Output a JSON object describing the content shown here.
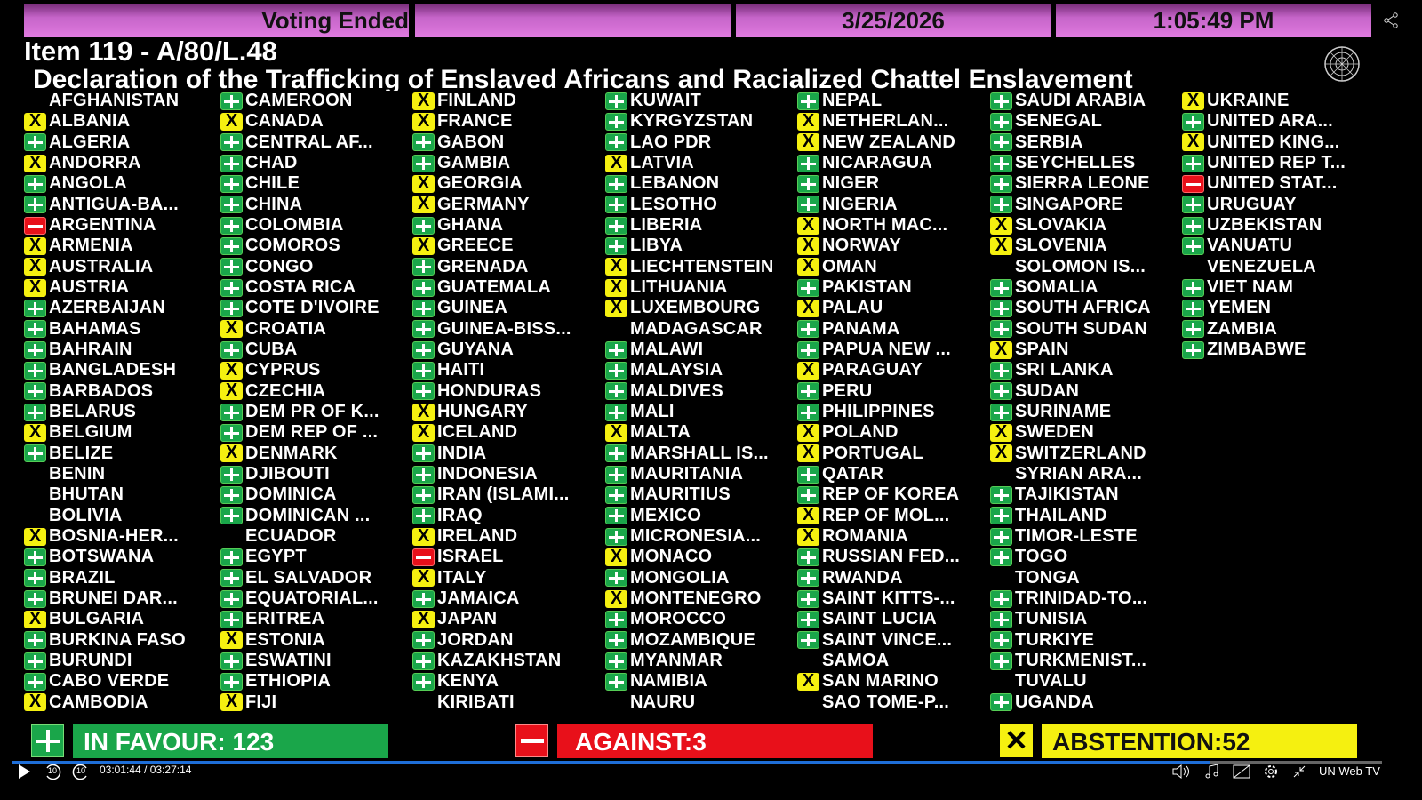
{
  "header": {
    "status": "Voting Ended",
    "blank": "",
    "date": "3/25/2026",
    "time": "1:05:49 PM"
  },
  "item_title": "Item 119 - A/80/L.48",
  "resolution_title": "Declaration of the Trafficking of Enslaved Africans and Racialized Chattel Enslavement",
  "vote_colors": {
    "yes": "#1aa64a",
    "no": "#e8101a",
    "abstain": "#f5f010"
  },
  "columns": [
    [
      {
        "v": "none",
        "n": "AFGHANISTAN"
      },
      {
        "v": "abstain",
        "n": "ALBANIA"
      },
      {
        "v": "yes",
        "n": "ALGERIA"
      },
      {
        "v": "abstain",
        "n": "ANDORRA"
      },
      {
        "v": "yes",
        "n": "ANGOLA"
      },
      {
        "v": "yes",
        "n": "ANTIGUA-BA..."
      },
      {
        "v": "no",
        "n": "ARGENTINA"
      },
      {
        "v": "abstain",
        "n": "ARMENIA"
      },
      {
        "v": "abstain",
        "n": "AUSTRALIA"
      },
      {
        "v": "abstain",
        "n": "AUSTRIA"
      },
      {
        "v": "yes",
        "n": "AZERBAIJAN"
      },
      {
        "v": "yes",
        "n": "BAHAMAS"
      },
      {
        "v": "yes",
        "n": "BAHRAIN"
      },
      {
        "v": "yes",
        "n": "BANGLADESH"
      },
      {
        "v": "yes",
        "n": "BARBADOS"
      },
      {
        "v": "yes",
        "n": "BELARUS"
      },
      {
        "v": "abstain",
        "n": "BELGIUM"
      },
      {
        "v": "yes",
        "n": "BELIZE"
      },
      {
        "v": "none",
        "n": "BENIN"
      },
      {
        "v": "none",
        "n": "BHUTAN"
      },
      {
        "v": "none",
        "n": "BOLIVIA"
      },
      {
        "v": "abstain",
        "n": "BOSNIA-HER..."
      },
      {
        "v": "yes",
        "n": "BOTSWANA"
      },
      {
        "v": "yes",
        "n": "BRAZIL"
      },
      {
        "v": "yes",
        "n": "BRUNEI DAR..."
      },
      {
        "v": "abstain",
        "n": "BULGARIA"
      },
      {
        "v": "yes",
        "n": "BURKINA FASO"
      },
      {
        "v": "yes",
        "n": "BURUNDI"
      },
      {
        "v": "yes",
        "n": "CABO VERDE"
      },
      {
        "v": "abstain",
        "n": "CAMBODIA"
      }
    ],
    [
      {
        "v": "yes",
        "n": "CAMEROON"
      },
      {
        "v": "abstain",
        "n": "CANADA"
      },
      {
        "v": "yes",
        "n": "CENTRAL AF..."
      },
      {
        "v": "yes",
        "n": "CHAD"
      },
      {
        "v": "yes",
        "n": "CHILE"
      },
      {
        "v": "yes",
        "n": "CHINA"
      },
      {
        "v": "yes",
        "n": "COLOMBIA"
      },
      {
        "v": "yes",
        "n": "COMOROS"
      },
      {
        "v": "yes",
        "n": "CONGO"
      },
      {
        "v": "yes",
        "n": "COSTA RICA"
      },
      {
        "v": "yes",
        "n": "COTE D'IVOIRE"
      },
      {
        "v": "abstain",
        "n": "CROATIA"
      },
      {
        "v": "yes",
        "n": "CUBA"
      },
      {
        "v": "abstain",
        "n": "CYPRUS"
      },
      {
        "v": "abstain",
        "n": "CZECHIA"
      },
      {
        "v": "yes",
        "n": "DEM PR OF K..."
      },
      {
        "v": "yes",
        "n": "DEM REP OF ..."
      },
      {
        "v": "abstain",
        "n": "DENMARK"
      },
      {
        "v": "yes",
        "n": "DJIBOUTI"
      },
      {
        "v": "yes",
        "n": "DOMINICA"
      },
      {
        "v": "yes",
        "n": "DOMINICAN ..."
      },
      {
        "v": "none",
        "n": "ECUADOR"
      },
      {
        "v": "yes",
        "n": "EGYPT"
      },
      {
        "v": "yes",
        "n": "EL SALVADOR"
      },
      {
        "v": "yes",
        "n": "EQUATORIAL..."
      },
      {
        "v": "yes",
        "n": "ERITREA"
      },
      {
        "v": "abstain",
        "n": "ESTONIA"
      },
      {
        "v": "yes",
        "n": "ESWATINI"
      },
      {
        "v": "yes",
        "n": "ETHIOPIA"
      },
      {
        "v": "abstain",
        "n": "FIJI"
      }
    ],
    [
      {
        "v": "abstain",
        "n": "FINLAND"
      },
      {
        "v": "abstain",
        "n": "FRANCE"
      },
      {
        "v": "yes",
        "n": "GABON"
      },
      {
        "v": "yes",
        "n": "GAMBIA"
      },
      {
        "v": "abstain",
        "n": "GEORGIA"
      },
      {
        "v": "abstain",
        "n": "GERMANY"
      },
      {
        "v": "yes",
        "n": "GHANA"
      },
      {
        "v": "abstain",
        "n": "GREECE"
      },
      {
        "v": "yes",
        "n": "GRENADA"
      },
      {
        "v": "yes",
        "n": "GUATEMALA"
      },
      {
        "v": "yes",
        "n": "GUINEA"
      },
      {
        "v": "yes",
        "n": "GUINEA-BISS..."
      },
      {
        "v": "yes",
        "n": "GUYANA"
      },
      {
        "v": "yes",
        "n": "HAITI"
      },
      {
        "v": "yes",
        "n": "HONDURAS"
      },
      {
        "v": "abstain",
        "n": "HUNGARY"
      },
      {
        "v": "abstain",
        "n": "ICELAND"
      },
      {
        "v": "yes",
        "n": "INDIA"
      },
      {
        "v": "yes",
        "n": "INDONESIA"
      },
      {
        "v": "yes",
        "n": "IRAN (ISLAMI..."
      },
      {
        "v": "yes",
        "n": "IRAQ"
      },
      {
        "v": "abstain",
        "n": "IRELAND"
      },
      {
        "v": "no",
        "n": "ISRAEL"
      },
      {
        "v": "abstain",
        "n": "ITALY"
      },
      {
        "v": "yes",
        "n": "JAMAICA"
      },
      {
        "v": "abstain",
        "n": "JAPAN"
      },
      {
        "v": "yes",
        "n": "JORDAN"
      },
      {
        "v": "yes",
        "n": "KAZAKHSTAN"
      },
      {
        "v": "yes",
        "n": "KENYA"
      },
      {
        "v": "none",
        "n": "KIRIBATI"
      }
    ],
    [
      {
        "v": "yes",
        "n": "KUWAIT"
      },
      {
        "v": "yes",
        "n": "KYRGYZSTAN"
      },
      {
        "v": "yes",
        "n": "LAO PDR"
      },
      {
        "v": "abstain",
        "n": "LATVIA"
      },
      {
        "v": "yes",
        "n": "LEBANON"
      },
      {
        "v": "yes",
        "n": "LESOTHO"
      },
      {
        "v": "yes",
        "n": "LIBERIA"
      },
      {
        "v": "yes",
        "n": "LIBYA"
      },
      {
        "v": "abstain",
        "n": "LIECHTENSTEIN"
      },
      {
        "v": "abstain",
        "n": "LITHUANIA"
      },
      {
        "v": "abstain",
        "n": "LUXEMBOURG"
      },
      {
        "v": "none",
        "n": "MADAGASCAR"
      },
      {
        "v": "yes",
        "n": "MALAWI"
      },
      {
        "v": "yes",
        "n": "MALAYSIA"
      },
      {
        "v": "yes",
        "n": "MALDIVES"
      },
      {
        "v": "yes",
        "n": "MALI"
      },
      {
        "v": "abstain",
        "n": "MALTA"
      },
      {
        "v": "yes",
        "n": "MARSHALL IS..."
      },
      {
        "v": "yes",
        "n": "MAURITANIA"
      },
      {
        "v": "yes",
        "n": "MAURITIUS"
      },
      {
        "v": "yes",
        "n": "MEXICO"
      },
      {
        "v": "yes",
        "n": "MICRONESIA..."
      },
      {
        "v": "abstain",
        "n": "MONACO"
      },
      {
        "v": "yes",
        "n": "MONGOLIA"
      },
      {
        "v": "abstain",
        "n": "MONTENEGRO"
      },
      {
        "v": "yes",
        "n": "MOROCCO"
      },
      {
        "v": "yes",
        "n": "MOZAMBIQUE"
      },
      {
        "v": "yes",
        "n": "MYANMAR"
      },
      {
        "v": "yes",
        "n": "NAMIBIA"
      },
      {
        "v": "none",
        "n": "NAURU"
      }
    ],
    [
      {
        "v": "yes",
        "n": "NEPAL"
      },
      {
        "v": "abstain",
        "n": "NETHERLAN..."
      },
      {
        "v": "abstain",
        "n": "NEW ZEALAND"
      },
      {
        "v": "yes",
        "n": "NICARAGUA"
      },
      {
        "v": "yes",
        "n": "NIGER"
      },
      {
        "v": "yes",
        "n": "NIGERIA"
      },
      {
        "v": "abstain",
        "n": "NORTH MAC..."
      },
      {
        "v": "abstain",
        "n": "NORWAY"
      },
      {
        "v": "abstain",
        "n": "OMAN"
      },
      {
        "v": "yes",
        "n": "PAKISTAN"
      },
      {
        "v": "abstain",
        "n": "PALAU"
      },
      {
        "v": "yes",
        "n": "PANAMA"
      },
      {
        "v": "yes",
        "n": "PAPUA NEW ..."
      },
      {
        "v": "abstain",
        "n": "PARAGUAY"
      },
      {
        "v": "yes",
        "n": "PERU"
      },
      {
        "v": "yes",
        "n": "PHILIPPINES"
      },
      {
        "v": "abstain",
        "n": "POLAND"
      },
      {
        "v": "abstain",
        "n": "PORTUGAL"
      },
      {
        "v": "yes",
        "n": "QATAR"
      },
      {
        "v": "yes",
        "n": "REP OF KOREA"
      },
      {
        "v": "abstain",
        "n": "REP OF MOL..."
      },
      {
        "v": "abstain",
        "n": "ROMANIA"
      },
      {
        "v": "yes",
        "n": "RUSSIAN FED..."
      },
      {
        "v": "yes",
        "n": "RWANDA"
      },
      {
        "v": "yes",
        "n": "SAINT KITTS-..."
      },
      {
        "v": "yes",
        "n": "SAINT LUCIA"
      },
      {
        "v": "yes",
        "n": "SAINT VINCE..."
      },
      {
        "v": "none",
        "n": "SAMOA"
      },
      {
        "v": "abstain",
        "n": "SAN MARINO"
      },
      {
        "v": "none",
        "n": "SAO TOME-P..."
      }
    ],
    [
      {
        "v": "yes",
        "n": "SAUDI ARABIA"
      },
      {
        "v": "yes",
        "n": "SENEGAL"
      },
      {
        "v": "yes",
        "n": "SERBIA"
      },
      {
        "v": "yes",
        "n": "SEYCHELLES"
      },
      {
        "v": "yes",
        "n": "SIERRA LEONE"
      },
      {
        "v": "yes",
        "n": "SINGAPORE"
      },
      {
        "v": "abstain",
        "n": "SLOVAKIA"
      },
      {
        "v": "abstain",
        "n": "SLOVENIA"
      },
      {
        "v": "none",
        "n": "SOLOMON IS..."
      },
      {
        "v": "yes",
        "n": "SOMALIA"
      },
      {
        "v": "yes",
        "n": "SOUTH AFRICA"
      },
      {
        "v": "yes",
        "n": "SOUTH SUDAN"
      },
      {
        "v": "abstain",
        "n": "SPAIN"
      },
      {
        "v": "yes",
        "n": "SRI LANKA"
      },
      {
        "v": "yes",
        "n": "SUDAN"
      },
      {
        "v": "yes",
        "n": "SURINAME"
      },
      {
        "v": "abstain",
        "n": "SWEDEN"
      },
      {
        "v": "abstain",
        "n": "SWITZERLAND"
      },
      {
        "v": "none",
        "n": "SYRIAN ARA..."
      },
      {
        "v": "yes",
        "n": "TAJIKISTAN"
      },
      {
        "v": "yes",
        "n": "THAILAND"
      },
      {
        "v": "yes",
        "n": "TIMOR-LESTE"
      },
      {
        "v": "yes",
        "n": "TOGO"
      },
      {
        "v": "none",
        "n": "TONGA"
      },
      {
        "v": "yes",
        "n": "TRINIDAD-TO..."
      },
      {
        "v": "yes",
        "n": "TUNISIA"
      },
      {
        "v": "yes",
        "n": "TURKIYE"
      },
      {
        "v": "yes",
        "n": "TURKMENIST..."
      },
      {
        "v": "none",
        "n": "TUVALU"
      },
      {
        "v": "yes",
        "n": "UGANDA"
      }
    ],
    [
      {
        "v": "abstain",
        "n": "UKRAINE"
      },
      {
        "v": "yes",
        "n": "UNITED ARA..."
      },
      {
        "v": "abstain",
        "n": "UNITED KING..."
      },
      {
        "v": "yes",
        "n": "UNITED REP T..."
      },
      {
        "v": "no",
        "n": "UNITED STAT..."
      },
      {
        "v": "yes",
        "n": "URUGUAY"
      },
      {
        "v": "yes",
        "n": "UZBEKISTAN"
      },
      {
        "v": "yes",
        "n": "VANUATU"
      },
      {
        "v": "none",
        "n": "VENEZUELA"
      },
      {
        "v": "yes",
        "n": "VIET NAM"
      },
      {
        "v": "yes",
        "n": "YEMEN"
      },
      {
        "v": "yes",
        "n": "ZAMBIA"
      },
      {
        "v": "yes",
        "n": "ZIMBABWE"
      }
    ]
  ],
  "totals": {
    "in_favour": "IN FAVOUR: 123",
    "against": "AGAINST:3",
    "abstention": "ABSTENTION:52"
  },
  "player": {
    "time": "03:01:44 / 03:27:14",
    "progress_percent": 87.5,
    "brand": "UN Web TV",
    "skip_back": "10",
    "skip_forward": "10"
  }
}
